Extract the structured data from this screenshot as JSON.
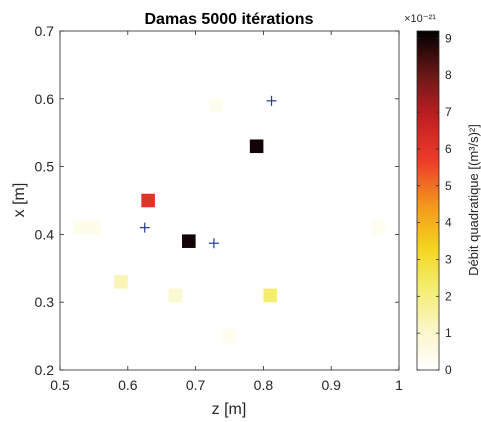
{
  "chart_data": {
    "type": "heatmap",
    "title": "Damas 5000 itérations",
    "xlabel": "z [m]",
    "ylabel": "x [m]",
    "xlim": [
      0.5,
      1.0
    ],
    "ylim": [
      0.2,
      0.7
    ],
    "x_ticks": [
      "0.5",
      "0.6",
      "0.7",
      "0.8",
      "0.9",
      "1"
    ],
    "y_ticks": [
      "0.2",
      "0.3",
      "0.4",
      "0.5",
      "0.6",
      "0.7"
    ],
    "grid": false,
    "colorbar": {
      "label": "Débit quadratique [(m³/s)²]",
      "range": [
        0,
        9.2
      ],
      "exponent": "×10⁻²¹",
      "ticks": [
        "0",
        "1",
        "2",
        "3",
        "4",
        "5",
        "6",
        "7",
        "8",
        "9"
      ],
      "colormap": "hot (reversed)"
    },
    "cells": [
      {
        "z": 0.53,
        "x": 0.41,
        "value": 0.4
      },
      {
        "z": 0.55,
        "x": 0.41,
        "value": 0.4
      },
      {
        "z": 0.59,
        "x": 0.33,
        "value": 1.3
      },
      {
        "z": 0.63,
        "x": 0.45,
        "value": 6.0
      },
      {
        "z": 0.67,
        "x": 0.31,
        "value": 0.9
      },
      {
        "z": 0.69,
        "x": 0.39,
        "value": 9.0
      },
      {
        "z": 0.73,
        "x": 0.59,
        "value": 0.3
      },
      {
        "z": 0.75,
        "x": 0.25,
        "value": 0.3
      },
      {
        "z": 0.79,
        "x": 0.53,
        "value": 9.0
      },
      {
        "z": 0.81,
        "x": 0.31,
        "value": 2.2
      },
      {
        "z": 0.97,
        "x": 0.41,
        "value": 0.3
      }
    ],
    "markers": [
      {
        "z": 0.625,
        "x": 0.41
      },
      {
        "z": 0.727,
        "x": 0.387
      },
      {
        "z": 0.812,
        "x": 0.597
      }
    ],
    "marker_color": "#1f3a93",
    "axis_color": "#262626"
  }
}
